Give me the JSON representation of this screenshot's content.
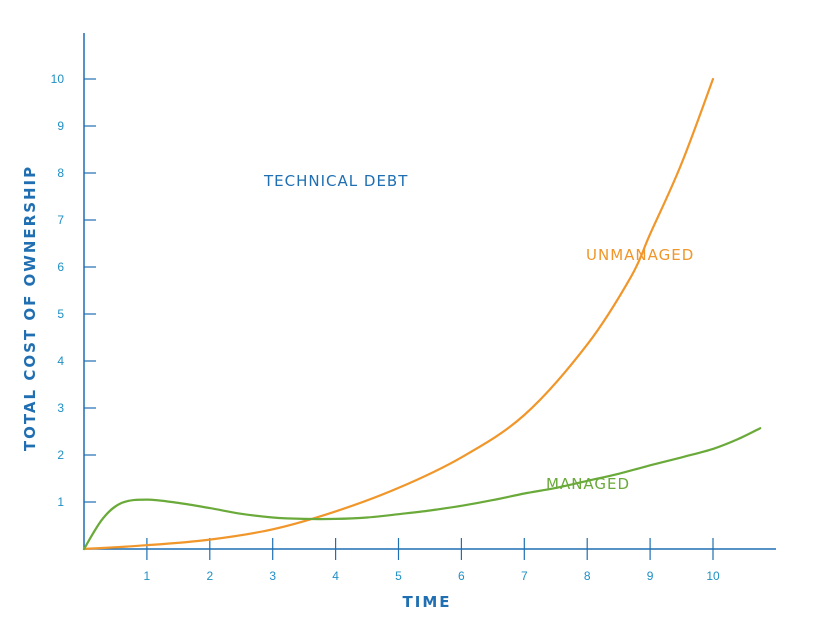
{
  "chart_data": {
    "type": "line",
    "title": "",
    "xlabel": "TIME",
    "ylabel": "TOTAL COST OF OWNERSHIP",
    "xlim": [
      0,
      10.5
    ],
    "ylim": [
      0,
      10
    ],
    "x_ticks": [
      "1",
      "2",
      "3",
      "4",
      "5",
      "6",
      "7",
      "8",
      "9",
      "10"
    ],
    "y_ticks": [
      "1",
      "2",
      "3",
      "4",
      "5",
      "6",
      "7",
      "8",
      "9",
      "10"
    ],
    "annotations": {
      "technical_debt": "TECHNICAL DEBT",
      "unmanaged": "UNMANAGED",
      "managed": "MANAGED"
    },
    "series": [
      {
        "name": "UNMANAGED",
        "color": "#f0962a",
        "points": [
          [
            0,
            0
          ],
          [
            1,
            0.08
          ],
          [
            2,
            0.2
          ],
          [
            3,
            0.42
          ],
          [
            4,
            0.8
          ],
          [
            5,
            1.3
          ],
          [
            6,
            1.95
          ],
          [
            7,
            2.85
          ],
          [
            8,
            4.35
          ],
          [
            8.7,
            5.8
          ],
          [
            9,
            6.7
          ],
          [
            9.5,
            8.2
          ],
          [
            10,
            10
          ]
        ]
      },
      {
        "name": "MANAGED",
        "color": "#6aaa3a",
        "points": [
          [
            0,
            0
          ],
          [
            0.3,
            0.65
          ],
          [
            0.6,
            0.98
          ],
          [
            1,
            1.05
          ],
          [
            1.5,
            0.98
          ],
          [
            2,
            0.87
          ],
          [
            2.5,
            0.75
          ],
          [
            3,
            0.67
          ],
          [
            3.5,
            0.64
          ],
          [
            4,
            0.64
          ],
          [
            4.5,
            0.67
          ],
          [
            5,
            0.74
          ],
          [
            5.5,
            0.82
          ],
          [
            6,
            0.92
          ],
          [
            6.5,
            1.04
          ],
          [
            7,
            1.18
          ],
          [
            7.5,
            1.3
          ],
          [
            8,
            1.45
          ],
          [
            8.5,
            1.6
          ],
          [
            9,
            1.78
          ],
          [
            9.5,
            1.95
          ],
          [
            10,
            2.13
          ],
          [
            10.4,
            2.34
          ],
          [
            10.75,
            2.57
          ]
        ]
      }
    ]
  }
}
